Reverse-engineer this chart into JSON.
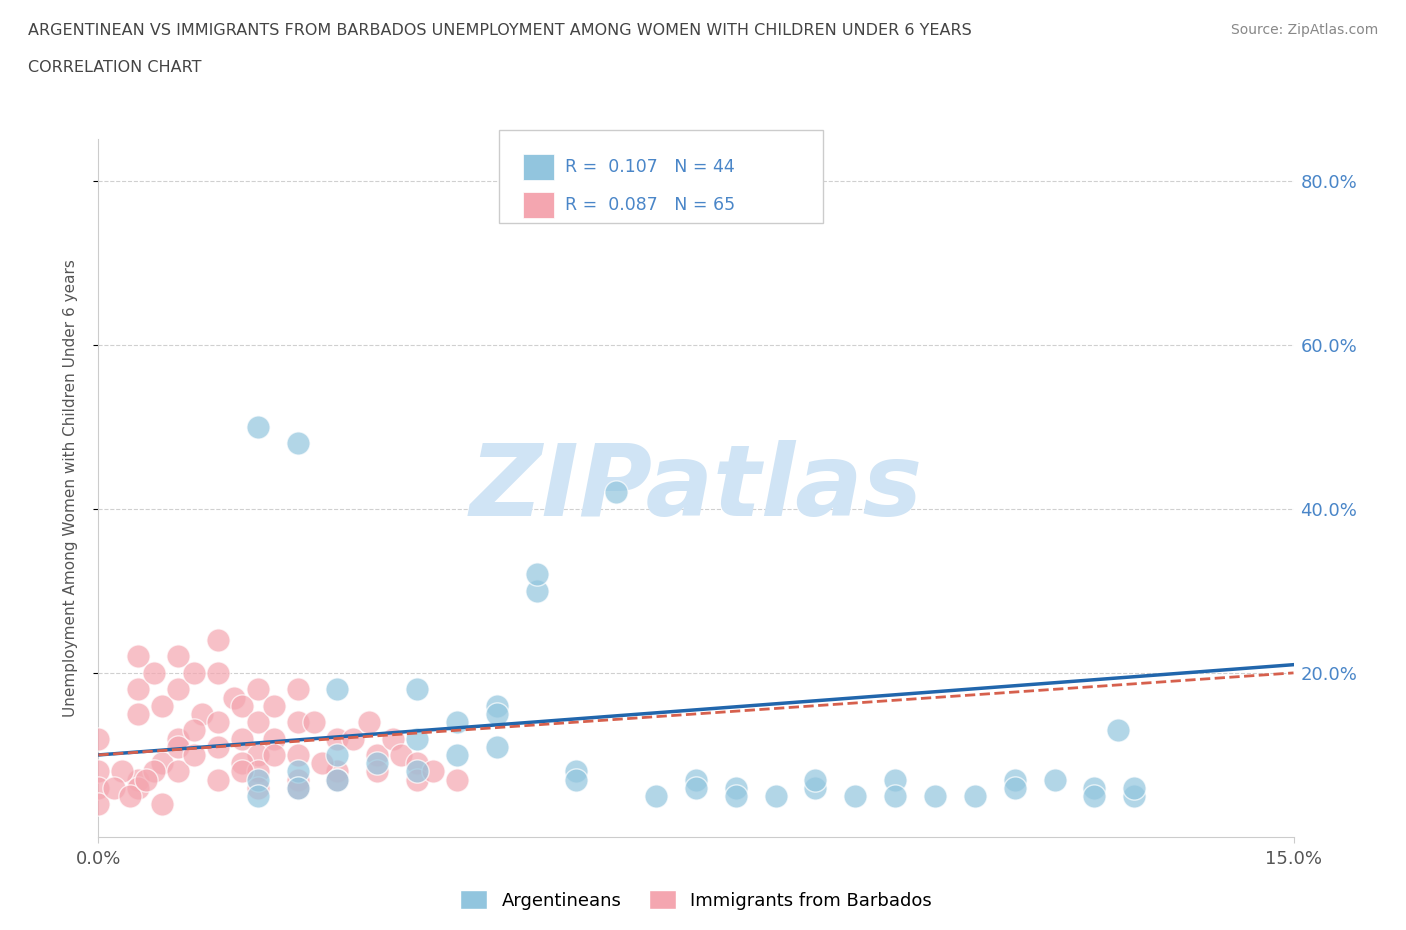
{
  "title_line1": "ARGENTINEAN VS IMMIGRANTS FROM BARBADOS UNEMPLOYMENT AMONG WOMEN WITH CHILDREN UNDER 6 YEARS",
  "title_line2": "CORRELATION CHART",
  "source_text": "Source: ZipAtlas.com",
  "xmin": 0.0,
  "xmax": 0.15,
  "ymin": 0.0,
  "ymax": 0.85,
  "yticks": [
    0.2,
    0.4,
    0.6,
    0.8
  ],
  "ytick_labels": [
    "20.0%",
    "40.0%",
    "60.0%",
    "80.0%"
  ],
  "xtick_labels": [
    "0.0%",
    "15.0%"
  ],
  "legend_r1": "R =  0.107",
  "legend_n1": "N = 44",
  "legend_r2": "R =  0.087",
  "legend_n2": "N = 65",
  "blue_color": "#92c5de",
  "pink_color": "#f4a6b0",
  "trend_blue_color": "#2166ac",
  "trend_pink_color": "#d6604d",
  "watermark": "ZIPatlas",
  "watermark_color": "#d0e4f5",
  "ylabel": "Unemployment Among Women with Children Under 6 years",
  "blue_x": [
    0.02,
    0.02,
    0.025,
    0.025,
    0.03,
    0.03,
    0.035,
    0.04,
    0.04,
    0.045,
    0.045,
    0.05,
    0.05,
    0.055,
    0.055,
    0.06,
    0.06,
    0.065,
    0.07,
    0.075,
    0.075,
    0.08,
    0.08,
    0.085,
    0.09,
    0.09,
    0.095,
    0.1,
    0.1,
    0.105,
    0.11,
    0.115,
    0.115,
    0.12,
    0.125,
    0.125,
    0.13,
    0.13,
    0.02,
    0.025,
    0.03,
    0.04,
    0.05,
    0.128
  ],
  "blue_y": [
    0.07,
    0.05,
    0.08,
    0.06,
    0.1,
    0.07,
    0.09,
    0.12,
    0.08,
    0.14,
    0.1,
    0.16,
    0.11,
    0.3,
    0.32,
    0.08,
    0.07,
    0.42,
    0.05,
    0.07,
    0.06,
    0.06,
    0.05,
    0.05,
    0.06,
    0.07,
    0.05,
    0.07,
    0.05,
    0.05,
    0.05,
    0.07,
    0.06,
    0.07,
    0.06,
    0.05,
    0.05,
    0.06,
    0.5,
    0.48,
    0.18,
    0.18,
    0.15,
    0.13
  ],
  "pink_x": [
    0.0,
    0.0,
    0.0,
    0.005,
    0.005,
    0.005,
    0.007,
    0.008,
    0.01,
    0.01,
    0.01,
    0.012,
    0.013,
    0.015,
    0.015,
    0.015,
    0.017,
    0.018,
    0.018,
    0.02,
    0.02,
    0.02,
    0.022,
    0.022,
    0.025,
    0.025,
    0.025,
    0.027,
    0.03,
    0.03,
    0.032,
    0.034,
    0.035,
    0.035,
    0.037,
    0.038,
    0.04,
    0.04,
    0.042,
    0.045,
    0.005,
    0.008,
    0.01,
    0.012,
    0.015,
    0.018,
    0.02,
    0.022,
    0.025,
    0.028,
    0.003,
    0.005,
    0.007,
    0.01,
    0.012,
    0.015,
    0.018,
    0.02,
    0.025,
    0.03,
    0.0,
    0.002,
    0.004,
    0.006,
    0.008
  ],
  "pink_y": [
    0.08,
    0.12,
    0.06,
    0.18,
    0.22,
    0.15,
    0.2,
    0.16,
    0.22,
    0.18,
    0.12,
    0.2,
    0.15,
    0.24,
    0.2,
    0.14,
    0.17,
    0.16,
    0.12,
    0.18,
    0.14,
    0.1,
    0.16,
    0.12,
    0.18,
    0.14,
    0.1,
    0.14,
    0.12,
    0.08,
    0.12,
    0.14,
    0.1,
    0.08,
    0.12,
    0.1,
    0.09,
    0.07,
    0.08,
    0.07,
    0.07,
    0.09,
    0.11,
    0.13,
    0.11,
    0.09,
    0.08,
    0.1,
    0.07,
    0.09,
    0.08,
    0.06,
    0.08,
    0.08,
    0.1,
    0.07,
    0.08,
    0.06,
    0.06,
    0.07,
    0.04,
    0.06,
    0.05,
    0.07,
    0.04
  ],
  "trend_blue_x0": 0.0,
  "trend_blue_y0": 0.1,
  "trend_blue_x1": 0.15,
  "trend_blue_y1": 0.21,
  "trend_pink_x0": 0.0,
  "trend_pink_y0": 0.1,
  "trend_pink_x1": 0.15,
  "trend_pink_y1": 0.2
}
